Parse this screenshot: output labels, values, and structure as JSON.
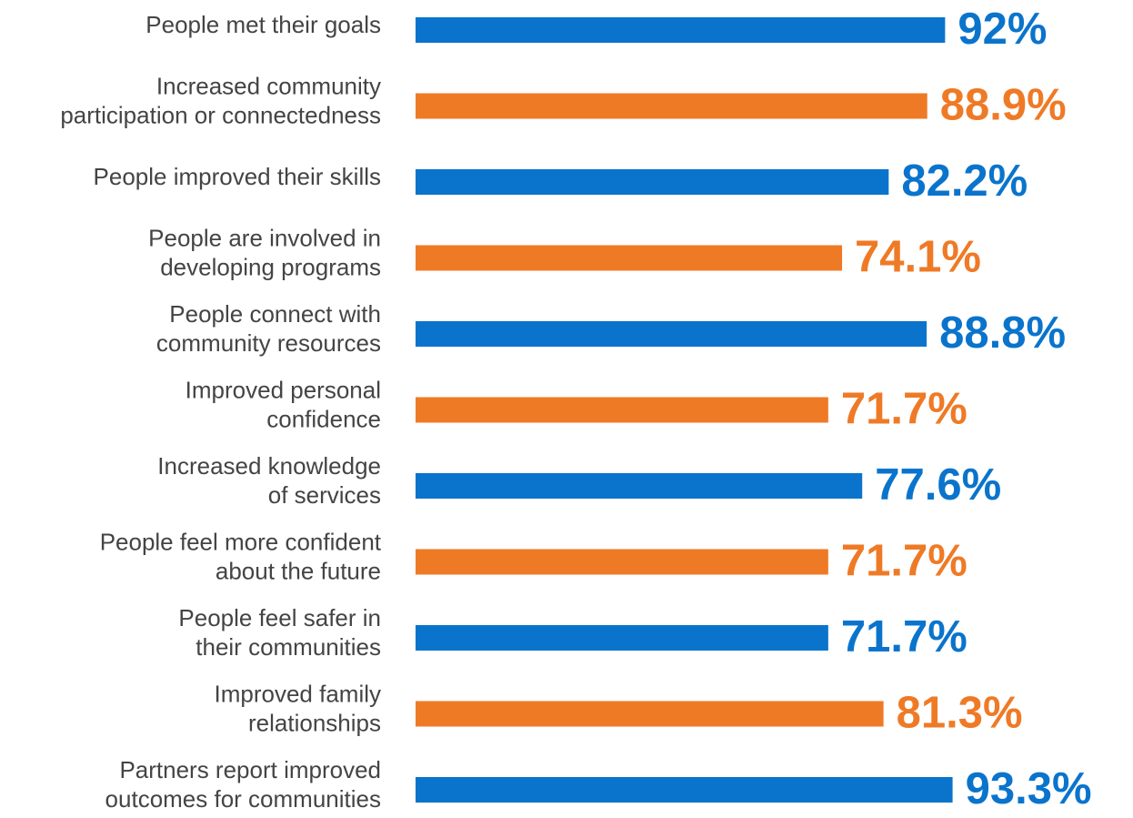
{
  "chart_data": {
    "type": "bar",
    "orientation": "horizontal",
    "categories": [
      [
        "People met their goals"
      ],
      [
        "Increased community",
        "participation or connectedness"
      ],
      [
        "People improved their skills"
      ],
      [
        "People are involved in",
        "developing programs"
      ],
      [
        "People connect with",
        "community resources"
      ],
      [
        "Improved personal",
        "confidence"
      ],
      [
        "Increased knowledge",
        "of services"
      ],
      [
        "People feel more confident",
        "about the future"
      ],
      [
        "People feel safer in",
        "their communities"
      ],
      [
        "Improved family",
        "relationships"
      ],
      [
        "Partners report improved",
        "outcomes for communities"
      ]
    ],
    "values": [
      92,
      88.9,
      82.2,
      74.1,
      88.8,
      71.7,
      77.6,
      71.7,
      71.7,
      81.3,
      93.3
    ],
    "value_labels": [
      "92%",
      "88.9%",
      "82.2%",
      "74.1%",
      "88.8%",
      "71.7%",
      "77.6%",
      "71.7%",
      "71.7%",
      "81.3%",
      "93.3%"
    ],
    "colors": [
      "#0a74cc",
      "#ef7a26",
      "#0a74cc",
      "#ef7a26",
      "#0a74cc",
      "#ef7a26",
      "#0a74cc",
      "#ef7a26",
      "#0a74cc",
      "#ef7a26",
      "#0a74cc"
    ]
  }
}
